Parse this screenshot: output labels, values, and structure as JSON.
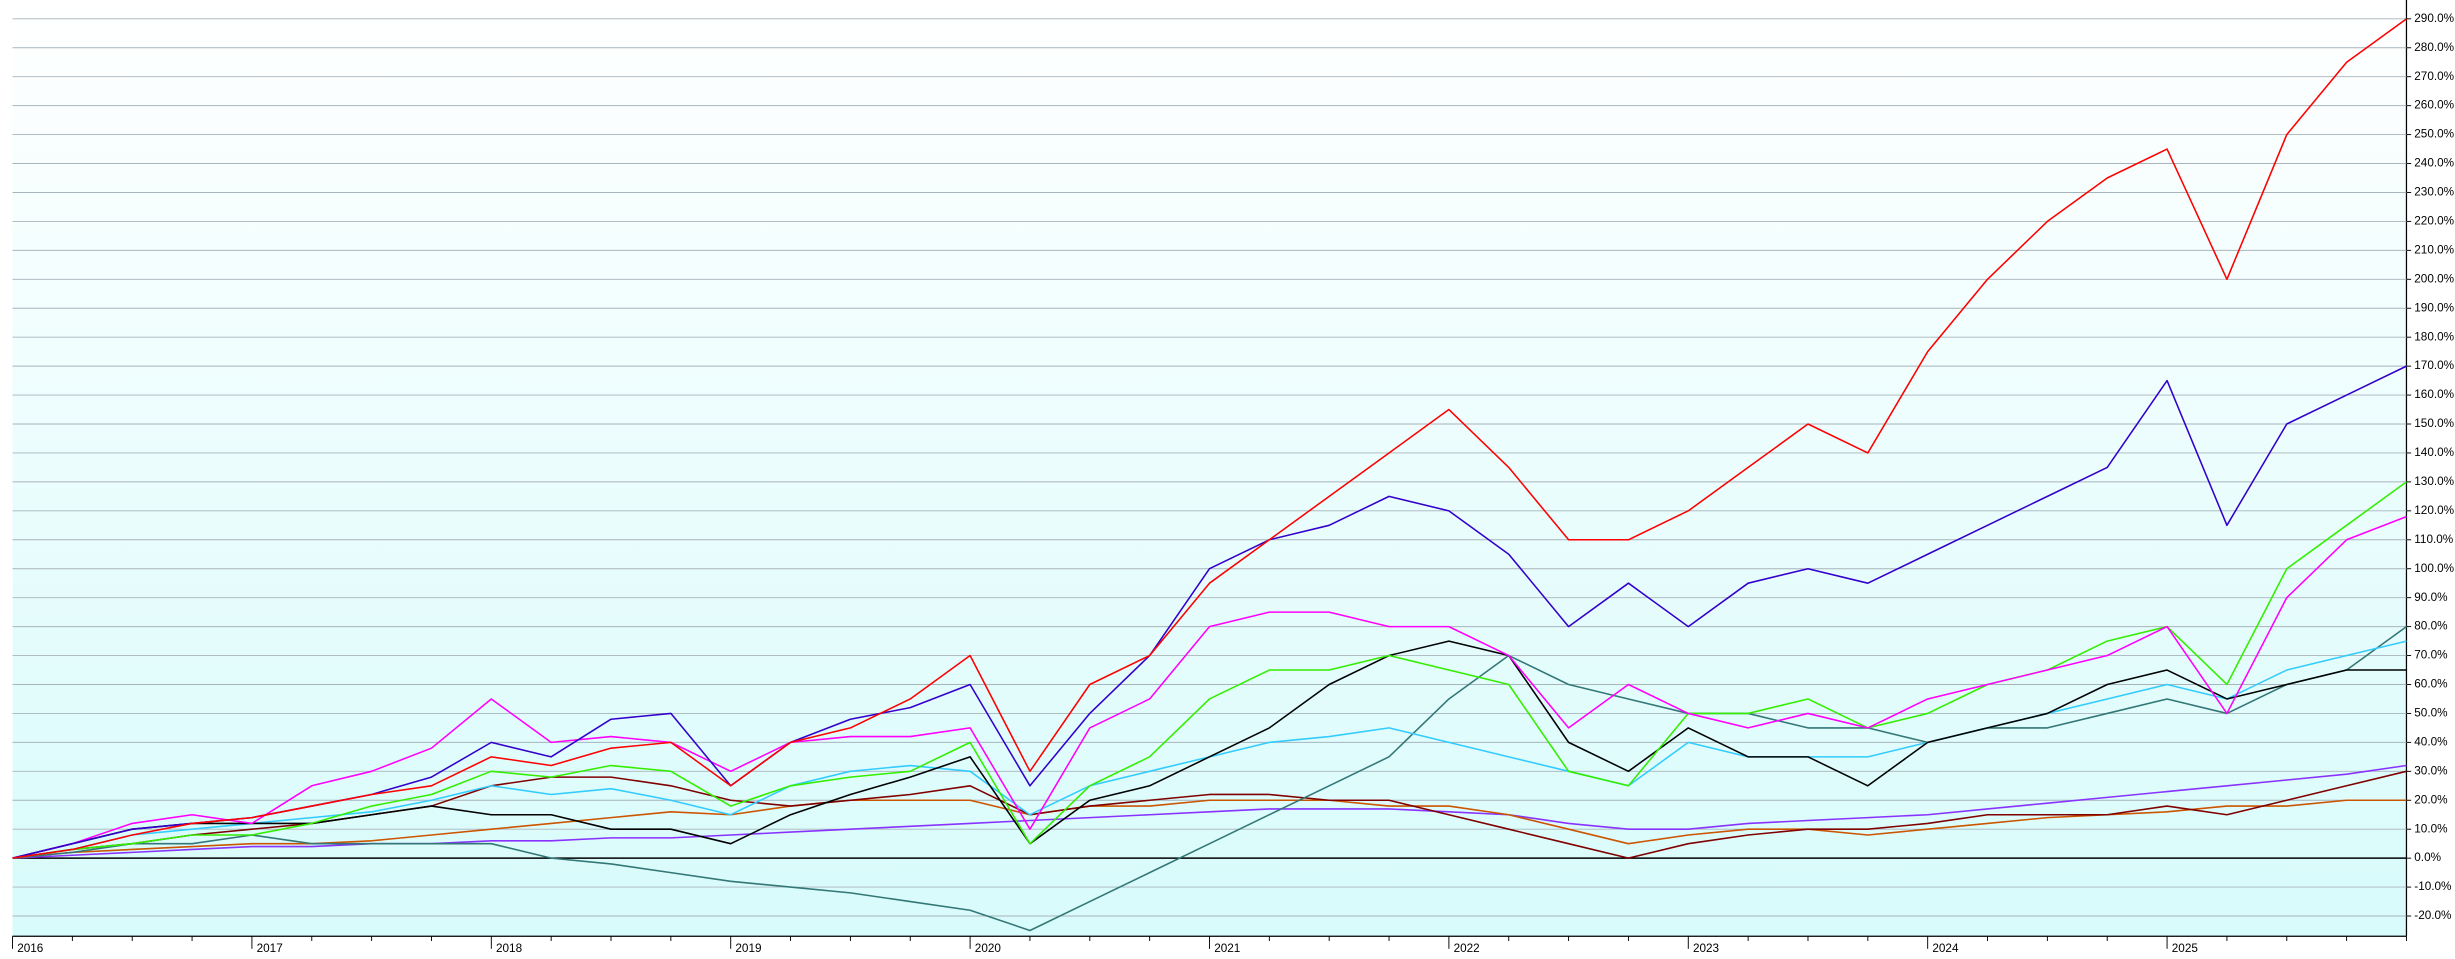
{
  "chart_data": {
    "type": "line",
    "categories": [
      "2016",
      null,
      null,
      null,
      "2017",
      null,
      null,
      null,
      "2018",
      null,
      null,
      null,
      "2019",
      null,
      null,
      null,
      "2020",
      null,
      null,
      null,
      "2021",
      null,
      null,
      null,
      "2022",
      null,
      null,
      null,
      "2023",
      null,
      null,
      null,
      "2024",
      null,
      null,
      null,
      "2025",
      null,
      null,
      null,
      null
    ],
    "series": [
      {
        "color": "#ff0000",
        "values": [
          0,
          3,
          8,
          12,
          14,
          18,
          22,
          25,
          35,
          32,
          38,
          40,
          25,
          40,
          45,
          55,
          70,
          30,
          60,
          70,
          95,
          110,
          125,
          140,
          155,
          135,
          110,
          110,
          120,
          135,
          150,
          140,
          175,
          200,
          220,
          235,
          245,
          200,
          250,
          275,
          290
        ]
      },
      {
        "color": "#3300cc",
        "values": [
          0,
          5,
          10,
          12,
          14,
          18,
          22,
          28,
          40,
          35,
          48,
          50,
          25,
          40,
          48,
          52,
          60,
          25,
          50,
          70,
          100,
          110,
          115,
          125,
          120,
          105,
          80,
          95,
          80,
          95,
          100,
          95,
          105,
          115,
          125,
          135,
          165,
          115,
          150,
          160,
          170
        ]
      },
      {
        "color": "#ff00ff",
        "values": [
          0,
          5,
          12,
          15,
          12,
          25,
          30,
          38,
          55,
          40,
          42,
          40,
          30,
          40,
          42,
          42,
          45,
          10,
          45,
          55,
          80,
          85,
          85,
          80,
          80,
          70,
          45,
          60,
          50,
          45,
          50,
          45,
          55,
          60,
          65,
          70,
          80,
          50,
          90,
          110,
          118
        ]
      },
      {
        "color": "#33ee00",
        "values": [
          0,
          3,
          5,
          8,
          8,
          12,
          18,
          22,
          30,
          28,
          32,
          30,
          18,
          25,
          28,
          30,
          40,
          5,
          25,
          35,
          55,
          65,
          65,
          70,
          65,
          60,
          30,
          25,
          50,
          50,
          55,
          45,
          50,
          60,
          65,
          75,
          80,
          60,
          100,
          115,
          130
        ]
      },
      {
        "color": "#000000",
        "values": [
          0,
          5,
          10,
          12,
          12,
          12,
          15,
          18,
          15,
          15,
          10,
          10,
          5,
          15,
          22,
          28,
          35,
          5,
          20,
          25,
          35,
          45,
          60,
          70,
          75,
          70,
          40,
          30,
          45,
          35,
          35,
          25,
          40,
          45,
          50,
          60,
          65,
          55,
          60,
          65,
          65
        ]
      },
      {
        "color": "#33ccff",
        "values": [
          0,
          3,
          8,
          10,
          12,
          14,
          16,
          20,
          25,
          22,
          24,
          20,
          15,
          25,
          30,
          32,
          30,
          15,
          25,
          30,
          35,
          40,
          42,
          45,
          40,
          35,
          30,
          25,
          40,
          35,
          35,
          35,
          40,
          45,
          50,
          55,
          60,
          55,
          65,
          70,
          75
        ]
      },
      {
        "color": "#337777",
        "values": [
          0,
          2,
          5,
          5,
          8,
          5,
          5,
          5,
          5,
          0,
          -2,
          -5,
          -8,
          -10,
          -12,
          -15,
          -18,
          -25,
          -15,
          -5,
          5,
          15,
          25,
          35,
          55,
          70,
          60,
          55,
          50,
          50,
          45,
          45,
          40,
          45,
          45,
          50,
          55,
          50,
          60,
          65,
          80
        ]
      },
      {
        "color": "#800000",
        "values": [
          0,
          3,
          5,
          8,
          10,
          12,
          15,
          18,
          25,
          28,
          28,
          25,
          20,
          18,
          20,
          22,
          25,
          15,
          18,
          20,
          22,
          22,
          20,
          20,
          15,
          10,
          5,
          0,
          5,
          8,
          10,
          10,
          12,
          15,
          15,
          15,
          18,
          15,
          20,
          25,
          30
        ]
      },
      {
        "color": "#cc5500",
        "values": [
          0,
          2,
          3,
          4,
          5,
          5,
          6,
          8,
          10,
          12,
          14,
          16,
          15,
          18,
          20,
          20,
          20,
          15,
          18,
          18,
          20,
          20,
          20,
          18,
          18,
          15,
          10,
          5,
          8,
          10,
          10,
          8,
          10,
          12,
          14,
          15,
          16,
          18,
          18,
          20,
          20
        ]
      },
      {
        "color": "#8833ff",
        "values": [
          0,
          1,
          2,
          3,
          4,
          4,
          5,
          5,
          6,
          6,
          7,
          7,
          8,
          9,
          10,
          11,
          12,
          13,
          14,
          15,
          16,
          17,
          17,
          17,
          16,
          15,
          12,
          10,
          10,
          12,
          13,
          14,
          15,
          17,
          19,
          21,
          23,
          25,
          27,
          29,
          32
        ]
      }
    ],
    "ylim": [
      -27,
      296.5
    ],
    "yticks": [
      {
        "value": -20,
        "label": "-20.0%"
      },
      {
        "value": -10,
        "label": "-10.0%"
      },
      {
        "value": 0,
        "label": "0.0%"
      },
      {
        "value": 10,
        "label": "10.0%"
      },
      {
        "value": 20,
        "label": "20.0%"
      },
      {
        "value": 30,
        "label": "30.0%"
      },
      {
        "value": 40,
        "label": "40.0%"
      },
      {
        "value": 50,
        "label": "50.0%"
      },
      {
        "value": 60,
        "label": "60.0%"
      },
      {
        "value": 70,
        "label": "70.0%"
      },
      {
        "value": 80,
        "label": "80.0%"
      },
      {
        "value": 90,
        "label": "90.0%"
      },
      {
        "value": 100,
        "label": "100.0%"
      },
      {
        "value": 110,
        "label": "110.0%"
      },
      {
        "value": 120,
        "label": "120.0%"
      },
      {
        "value": 130,
        "label": "130.0%"
      },
      {
        "value": 140,
        "label": "140.0%"
      },
      {
        "value": 150,
        "label": "150.0%"
      },
      {
        "value": 160,
        "label": "160.0%"
      },
      {
        "value": 170,
        "label": "170.0%"
      },
      {
        "value": 180,
        "label": "180.0%"
      },
      {
        "value": 190,
        "label": "190.0%"
      },
      {
        "value": 200,
        "label": "200.0%"
      },
      {
        "value": 210,
        "label": "210.0%"
      },
      {
        "value": 220,
        "label": "220.0%"
      },
      {
        "value": 230,
        "label": "230.0%"
      },
      {
        "value": 240,
        "label": "240.0%"
      },
      {
        "value": 250,
        "label": "250.0%"
      },
      {
        "value": 260,
        "label": "260.0%"
      },
      {
        "value": 270,
        "label": "270.0%"
      },
      {
        "value": 280,
        "label": "280.0%"
      },
      {
        "value": 290,
        "label": "290.0%"
      }
    ],
    "grid": true,
    "zero_line": true
  }
}
